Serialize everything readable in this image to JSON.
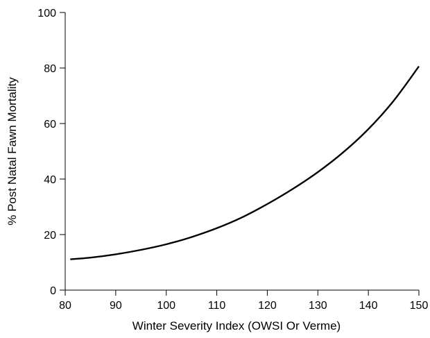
{
  "chart_data": {
    "type": "line",
    "title": "",
    "xlabel": "Winter Severity Index (OWSI Or Verme)",
    "ylabel": "% Post Natal Fawn Mortality",
    "xlim": [
      80,
      150
    ],
    "ylim": [
      0,
      100
    ],
    "xticks": [
      80,
      90,
      100,
      110,
      120,
      130,
      140,
      150
    ],
    "yticks": [
      0,
      20,
      40,
      60,
      80,
      100
    ],
    "grid": false,
    "legend": "none",
    "series": [
      {
        "color": "#000000",
        "x": [
          81,
          85,
          90,
          95,
          100,
          105,
          110,
          115,
          120,
          125,
          130,
          135,
          140,
          145,
          150
        ],
        "y": [
          11.1,
          11.7,
          12.9,
          14.5,
          16.5,
          19.1,
          22.3,
          26.2,
          31.0,
          36.4,
          42.5,
          49.6,
          58.0,
          68.2,
          80.6
        ]
      }
    ]
  }
}
